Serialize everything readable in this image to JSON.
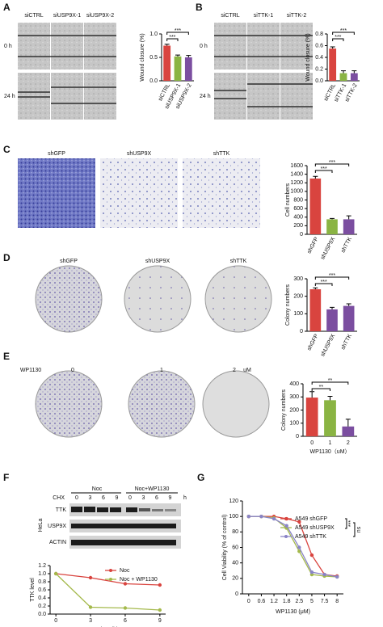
{
  "figure": {
    "panel_labels": [
      "A",
      "B",
      "C",
      "D",
      "E",
      "F",
      "G"
    ],
    "A": {
      "columns": [
        "siCTRL",
        "siUSP9X-1",
        "siUSP9X-2"
      ],
      "rows": [
        "0 h",
        "24 h"
      ]
    },
    "B": {
      "columns": [
        "siCTRL",
        "siTTK-1",
        "siTTK-2"
      ],
      "rows": [
        "0 h",
        "24 h"
      ]
    },
    "C": {
      "columns": [
        "shGFP",
        "shUSP9X",
        "shTTK"
      ]
    },
    "D": {
      "columns": [
        "shGFP",
        "shUSP9X",
        "shTTK"
      ]
    },
    "E": {
      "treatment": "WP1130",
      "doses": [
        "0",
        "1",
        "2"
      ],
      "unit": "uM"
    },
    "F": {
      "groups": [
        "Noc",
        "Noc+WP1130"
      ],
      "treatment": "CHX",
      "times": [
        "0",
        "3",
        "6",
        "9",
        "0",
        "3",
        "6",
        "9"
      ],
      "time_unit": "h",
      "cell_line": "HeLa",
      "proteins": [
        "TTK",
        "USP9X",
        "ACTIN"
      ]
    }
  },
  "chart_data": [
    {
      "type": "bar",
      "categories": [
        "siCTRL",
        "siUSP9X-1",
        "siUSP9X-2"
      ],
      "values": [
        0.75,
        0.52,
        0.5
      ],
      "errors": [
        0.03,
        0.03,
        0.04
      ],
      "colors": [
        "#d9443f",
        "#8ab443",
        "#7b4ea0"
      ],
      "ylabel": "Wound closure (%)",
      "ylim": [
        0,
        1.0
      ],
      "yticks": [
        {
          "value": 0,
          "label": "0.0"
        },
        {
          "value": 0.5,
          "label": "0.5"
        },
        {
          "value": 1.0,
          "label": "1.0"
        }
      ],
      "annotations": [
        "***",
        "***"
      ]
    },
    {
      "type": "bar",
      "categories": [
        "siCTRL",
        "siTTK-1",
        "siTTK-2"
      ],
      "values": [
        0.55,
        0.13,
        0.13
      ],
      "errors": [
        0.03,
        0.04,
        0.04
      ],
      "colors": [
        "#d9443f",
        "#8ab443",
        "#7b4ea0"
      ],
      "ylabel": "Wound closure (%)",
      "ylim": [
        0,
        0.8
      ],
      "yticks": [
        {
          "value": 0,
          "label": "0.0"
        },
        {
          "value": 0.2,
          "label": "0.2"
        },
        {
          "value": 0.4,
          "label": "0.4"
        },
        {
          "value": 0.6,
          "label": "0.6"
        },
        {
          "value": 0.8,
          "label": "0.8"
        }
      ],
      "annotations": [
        "***",
        "***"
      ]
    },
    {
      "type": "bar",
      "categories": [
        "shGFP",
        "shUSP9X",
        "shTTK"
      ],
      "values": [
        1300,
        350,
        350
      ],
      "errors": [
        50,
        20,
        80
      ],
      "colors": [
        "#d9443f",
        "#8ab443",
        "#7b4ea0"
      ],
      "ylabel": "Cell numbers",
      "ylim": [
        0,
        1600
      ],
      "yticks": [
        0,
        200,
        400,
        600,
        800,
        1000,
        1200,
        1400,
        1600
      ],
      "annotations": [
        "***",
        "***"
      ]
    },
    {
      "type": "bar",
      "categories": [
        "shGFP",
        "shUSP9X",
        "shTTK"
      ],
      "values": [
        240,
        125,
        145
      ],
      "errors": [
        8,
        12,
        12
      ],
      "colors": [
        "#d9443f",
        "#7b4ea0",
        "#7b4ea0"
      ],
      "ylabel": "Colony numbers",
      "ylim": [
        0,
        300
      ],
      "yticks": [
        0,
        100,
        200,
        300
      ],
      "annotations": [
        "***",
        "***"
      ]
    },
    {
      "type": "bar",
      "categories": [
        "0",
        "1",
        "2"
      ],
      "values": [
        295,
        275,
        75
      ],
      "errors": [
        45,
        30,
        55
      ],
      "colors": [
        "#d9443f",
        "#8ab443",
        "#7b4ea0"
      ],
      "ylabel": "Colony numbers",
      "xlabel": "WP1130（uM）",
      "ylim": [
        0,
        400
      ],
      "yticks": [
        0,
        100,
        200,
        300,
        400
      ],
      "annotations": [
        "**",
        "**"
      ]
    },
    {
      "type": "line",
      "x": [
        0,
        3,
        6,
        9
      ],
      "xlim": [
        -0.5,
        9.5
      ],
      "xticks": [
        0,
        3,
        6,
        9
      ],
      "xlabel": "Time (h)",
      "ylabel": "TTK level",
      "ylim": [
        0,
        1.2
      ],
      "yticks": [
        {
          "value": 0,
          "label": "0.0"
        },
        {
          "value": 0.2,
          "label": "0.2"
        },
        {
          "value": 0.4,
          "label": "0.4"
        },
        {
          "value": 0.6,
          "label": "0.6"
        },
        {
          "value": 0.8,
          "label": "0.8"
        },
        {
          "value": 1.0,
          "label": "1.0"
        },
        {
          "value": 1.2,
          "label": "1.2"
        }
      ],
      "legend": "upper right",
      "series": [
        {
          "name": "Noc",
          "color": "#d9443f",
          "values": [
            1.0,
            0.9,
            0.75,
            0.72
          ]
        },
        {
          "name": "Noc + WP1130",
          "color": "#a4b94b",
          "values": [
            1.0,
            0.17,
            0.15,
            0.1
          ]
        }
      ]
    },
    {
      "type": "line",
      "categories": [
        "0",
        "0.6",
        "1.2",
        "1.8",
        "2.5",
        "5",
        "7.5",
        "8"
      ],
      "xlabel": "WP1130 (μM)",
      "ylabel": "Cell Viability (% of control)",
      "ylim": [
        0,
        120
      ],
      "yticks": [
        0,
        20,
        40,
        60,
        80,
        100,
        120
      ],
      "legend": "upper right",
      "annotations": [
        "***",
        "ns"
      ],
      "series": [
        {
          "name": "A549 shGFP",
          "color": "#d9443f",
          "values": [
            100,
            100,
            100,
            97,
            93,
            50,
            25,
            23
          ]
        },
        {
          "name": "A549 shUSP9X",
          "color": "#a4b94b",
          "values": [
            100,
            100,
            98,
            85,
            55,
            25,
            23,
            22
          ]
        },
        {
          "name": "A549 shTTK",
          "color": "#8a84c6",
          "values": [
            100,
            100,
            97,
            88,
            60,
            28,
            25,
            22
          ]
        }
      ]
    }
  ]
}
